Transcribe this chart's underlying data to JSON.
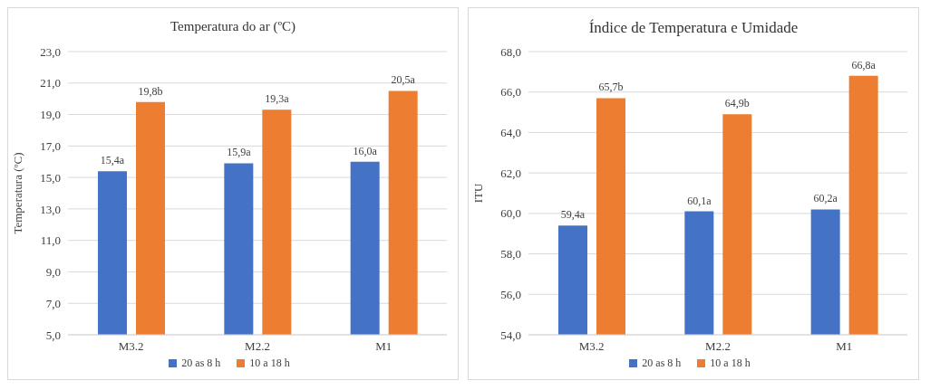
{
  "chart_data": [
    {
      "type": "bar",
      "title": "Temperatura do ar (ºC)",
      "ylabel": "Temperatura (ºC)",
      "categories": [
        "M3.2",
        "M2.2",
        "M1"
      ],
      "series": [
        {
          "name": "20 as 8 h",
          "color": "#4472c4",
          "values": [
            15.4,
            15.9,
            16.0
          ],
          "value_labels": [
            "15,4a",
            "15,9a",
            "16,0a"
          ]
        },
        {
          "name": "10 a 18 h",
          "color": "#ed7d31",
          "values": [
            19.8,
            19.3,
            20.5
          ],
          "value_labels": [
            "19,8b",
            "19,3a",
            "20,5a"
          ]
        }
      ],
      "ylim": [
        5,
        23
      ],
      "yticks": [
        {
          "value": 5,
          "label": "5,0"
        },
        {
          "value": 7,
          "label": "7,0"
        },
        {
          "value": 9,
          "label": "9,0"
        },
        {
          "value": 11,
          "label": "11,0"
        },
        {
          "value": 13,
          "label": "13,0"
        },
        {
          "value": 15,
          "label": "15,0"
        },
        {
          "value": 17,
          "label": "17,0"
        },
        {
          "value": 19,
          "label": "19,0"
        },
        {
          "value": 21,
          "label": "21,0"
        },
        {
          "value": 23,
          "label": "23,0"
        }
      ],
      "grid": "y",
      "legend": "bottom"
    },
    {
      "type": "bar",
      "title": "Índice de Temperatura e Umidade",
      "ylabel": "ITU",
      "categories": [
        "M3.2",
        "M2.2",
        "M1"
      ],
      "series": [
        {
          "name": "20 as 8 h",
          "color": "#4472c4",
          "values": [
            59.4,
            60.1,
            60.2
          ],
          "value_labels": [
            "59,4a",
            "60,1a",
            "60,2a"
          ]
        },
        {
          "name": "10 a 18 h",
          "color": "#ed7d31",
          "values": [
            65.7,
            64.9,
            66.8
          ],
          "value_labels": [
            "65,7b",
            "64,9b",
            "66,8a"
          ]
        }
      ],
      "ylim": [
        54,
        68
      ],
      "yticks": [
        {
          "value": 54,
          "label": "54,0"
        },
        {
          "value": 56,
          "label": "56,0"
        },
        {
          "value": 58,
          "label": "58,0"
        },
        {
          "value": 60,
          "label": "60,0"
        },
        {
          "value": 62,
          "label": "62,0"
        },
        {
          "value": 64,
          "label": "64,0"
        },
        {
          "value": 66,
          "label": "66,0"
        },
        {
          "value": 68,
          "label": "68,0"
        }
      ],
      "grid": "y",
      "legend": "bottom"
    }
  ]
}
